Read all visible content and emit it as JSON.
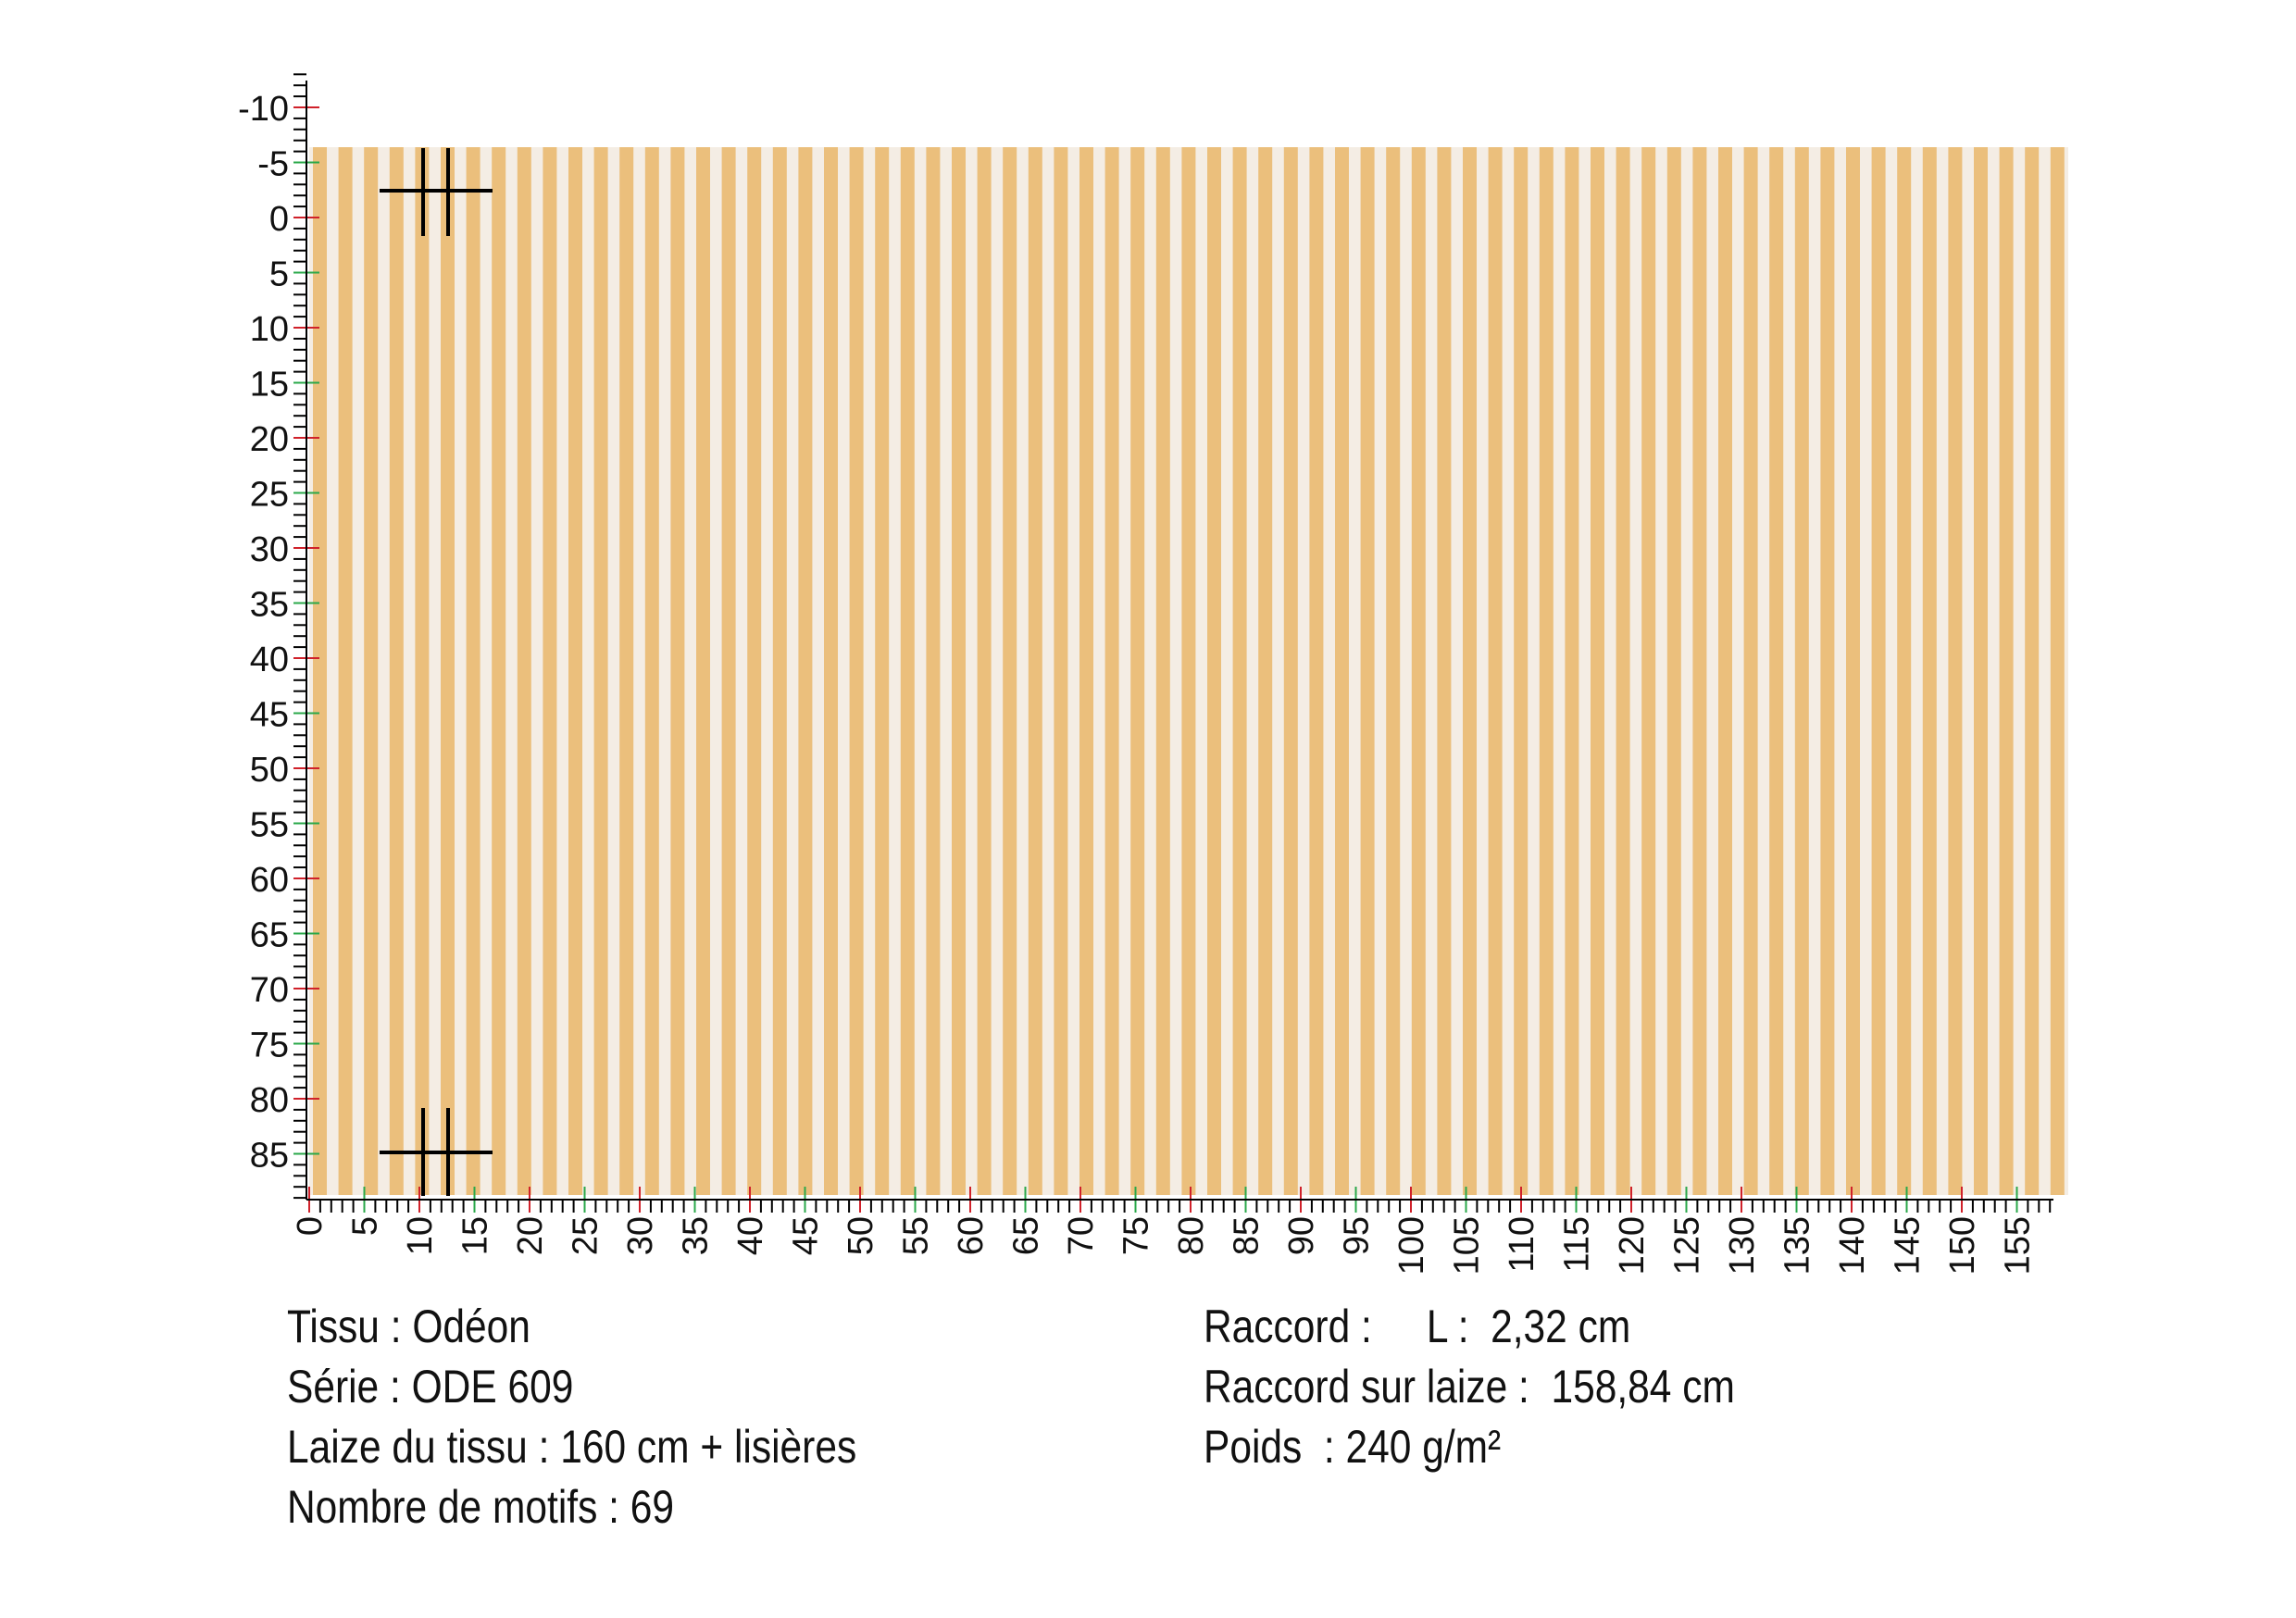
{
  "ruler": {
    "vertical_labels": [
      "-10",
      "-5",
      "0",
      "5",
      "10",
      "15",
      "20",
      "25",
      "30",
      "35",
      "40",
      "45",
      "50",
      "55",
      "60",
      "65",
      "70",
      "75",
      "80",
      "85"
    ],
    "horizontal_labels": [
      "0",
      "5",
      "10",
      "15",
      "20",
      "25",
      "30",
      "35",
      "40",
      "45",
      "50",
      "55",
      "60",
      "65",
      "70",
      "75",
      "80",
      "85",
      "90",
      "95",
      "100",
      "105",
      "110",
      "115",
      "120",
      "125",
      "130",
      "135",
      "140",
      "145",
      "150",
      "155"
    ]
  },
  "info": {
    "left": [
      "Tissu : Odéon",
      "Série : ODE 609",
      "Laize du tissu : 160 cm + lisières",
      "Nombre de motifs : 69"
    ],
    "right": [
      "Raccord :     L :  2,32 cm",
      "Raccord sur laize :  158,84 cm",
      "Poids  : 240 g/m²"
    ]
  }
}
